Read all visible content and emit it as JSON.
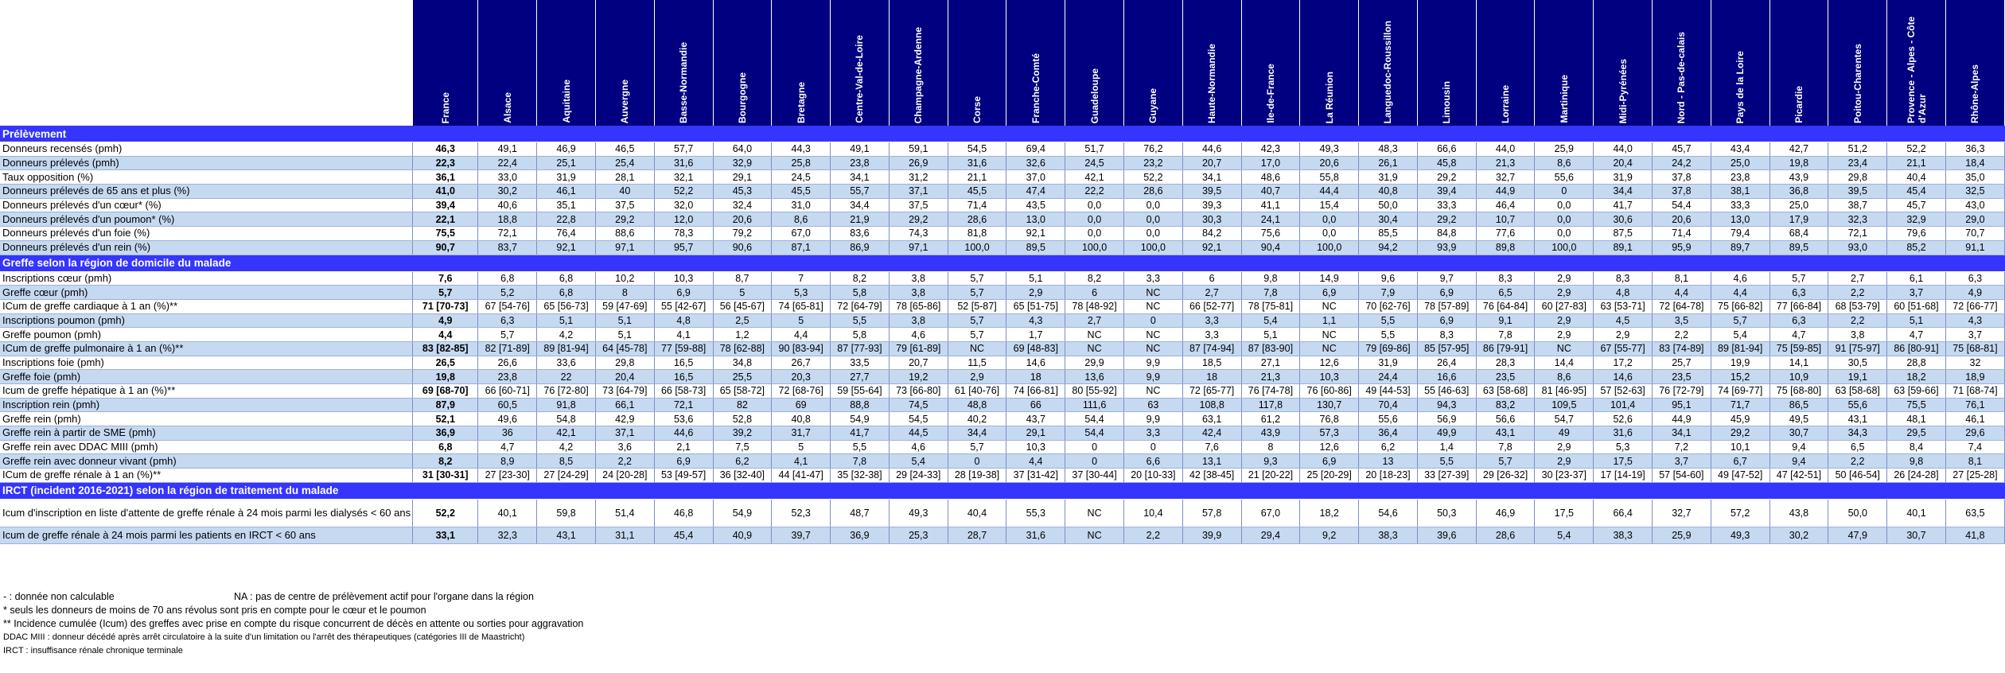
{
  "header": {
    "regions": [
      "France",
      "Alsace",
      "Aquitaine",
      "Auvergne",
      "Basse-Normandie",
      "Bourgogne",
      "Bretagne",
      "Centre-Val-de-Loire",
      "Champagne-Ardenne",
      "Corse",
      "Franche-Comté",
      "Guadeloupe",
      "Guyane",
      "Haute-Normandie",
      "Ile-de-France",
      "La Réunion",
      "Languedoc-Roussillon",
      "Limousin",
      "Lorraine",
      "Martinique",
      "Midi-Pyrénées",
      "Nord - Pas-de-calais",
      "Pays de la Loire",
      "Picardie",
      "Poitou-Charentes",
      "Provence - Alpes - Côte d'Azur",
      "Rhône-Alpes"
    ]
  },
  "sections": [
    {
      "title": "Prélèvement",
      "rows": [
        {
          "label": "Donneurs recensés (pmh)",
          "values": [
            "46,3",
            "49,1",
            "46,9",
            "46,5",
            "57,7",
            "64,0",
            "44,3",
            "49,1",
            "59,1",
            "54,5",
            "69,4",
            "51,7",
            "76,2",
            "44,6",
            "42,3",
            "49,3",
            "48,3",
            "66,6",
            "44,0",
            "25,9",
            "44,0",
            "45,7",
            "43,4",
            "42,7",
            "51,2",
            "52,2",
            "36,3"
          ]
        },
        {
          "label": "Donneurs prélevés (pmh)",
          "values": [
            "22,3",
            "22,4",
            "25,1",
            "25,4",
            "31,6",
            "32,9",
            "25,8",
            "23,8",
            "26,9",
            "31,6",
            "32,6",
            "24,5",
            "23,2",
            "20,7",
            "17,0",
            "20,6",
            "26,1",
            "45,8",
            "21,3",
            "8,6",
            "20,4",
            "24,2",
            "25,0",
            "19,8",
            "23,4",
            "21,1",
            "18,4"
          ]
        },
        {
          "label": "Taux opposition (%)",
          "values": [
            "36,1",
            "33,0",
            "31,9",
            "28,1",
            "32,1",
            "29,1",
            "24,5",
            "34,1",
            "31,2",
            "21,1",
            "37,0",
            "42,1",
            "52,2",
            "34,1",
            "48,6",
            "55,8",
            "31,9",
            "29,2",
            "32,7",
            "55,6",
            "31,9",
            "37,8",
            "23,8",
            "43,9",
            "29,8",
            "40,4",
            "35,0"
          ]
        },
        {
          "label": "Donneurs prélevés de 65 ans et plus (%)",
          "values": [
            "41,0",
            "30,2",
            "46,1",
            "40",
            "52,2",
            "45,3",
            "45,5",
            "55,7",
            "37,1",
            "45,5",
            "47,4",
            "22,2",
            "28,6",
            "39,5",
            "40,7",
            "44,4",
            "40,8",
            "39,4",
            "44,9",
            "0",
            "34,4",
            "37,8",
            "38,1",
            "36,8",
            "39,5",
            "45,4",
            "32,5"
          ]
        },
        {
          "label": "Donneurs prélevés d'un cœur* (%)",
          "values": [
            "39,4",
            "40,6",
            "35,1",
            "37,5",
            "32,0",
            "32,4",
            "31,0",
            "34,4",
            "37,5",
            "71,4",
            "43,5",
            "0,0",
            "0,0",
            "39,3",
            "41,1",
            "15,4",
            "50,0",
            "33,3",
            "46,4",
            "0,0",
            "41,7",
            "54,4",
            "33,3",
            "25,0",
            "38,7",
            "45,7",
            "43,0"
          ]
        },
        {
          "label": "Donneurs prélevés d'un poumon* (%)",
          "values": [
            "22,1",
            "18,8",
            "22,8",
            "29,2",
            "12,0",
            "20,6",
            "8,6",
            "21,9",
            "29,2",
            "28,6",
            "13,0",
            "0,0",
            "0,0",
            "30,3",
            "24,1",
            "0,0",
            "30,4",
            "29,2",
            "10,7",
            "0,0",
            "30,6",
            "20,6",
            "13,0",
            "17,9",
            "32,3",
            "32,9",
            "29,0"
          ]
        },
        {
          "label": "Donneurs prélevés d'un foie (%)",
          "values": [
            "75,5",
            "72,1",
            "76,4",
            "88,6",
            "78,3",
            "79,2",
            "67,0",
            "83,6",
            "74,3",
            "81,8",
            "92,1",
            "0,0",
            "0,0",
            "84,2",
            "75,6",
            "0,0",
            "85,5",
            "84,8",
            "77,6",
            "0,0",
            "87,5",
            "71,4",
            "79,4",
            "68,4",
            "72,1",
            "79,6",
            "70,7"
          ]
        },
        {
          "label": "Donneurs prélevés d'un rein (%)",
          "values": [
            "90,7",
            "83,7",
            "92,1",
            "97,1",
            "95,7",
            "90,6",
            "87,1",
            "86,9",
            "97,1",
            "100,0",
            "89,5",
            "100,0",
            "100,0",
            "92,1",
            "90,4",
            "100,0",
            "94,2",
            "93,9",
            "89,8",
            "100,0",
            "89,1",
            "95,9",
            "89,7",
            "89,5",
            "93,0",
            "85,2",
            "91,1"
          ]
        }
      ]
    },
    {
      "title": "Greffe selon la région de domicile du malade",
      "rows": [
        {
          "label": "Inscriptions cœur (pmh)",
          "values": [
            "7,6",
            "6,8",
            "6,8",
            "10,2",
            "10,3",
            "8,7",
            "7",
            "8,2",
            "3,8",
            "5,7",
            "5,1",
            "8,2",
            "3,3",
            "6",
            "9,8",
            "14,9",
            "9,6",
            "9,7",
            "8,3",
            "2,9",
            "8,3",
            "8,1",
            "4,6",
            "5,7",
            "2,7",
            "6,1",
            "6,3"
          ]
        },
        {
          "label": "Greffe cœur (pmh)",
          "values": [
            "5,7",
            "5,2",
            "6,8",
            "8",
            "6,9",
            "5",
            "5,3",
            "5,8",
            "3,8",
            "5,7",
            "2,9",
            "6",
            "NC",
            "2,7",
            "7,8",
            "6,9",
            "7,9",
            "6,9",
            "6,5",
            "2,9",
            "4,8",
            "4,4",
            "4,4",
            "6,3",
            "2,2",
            "3,7",
            "4,9"
          ]
        },
        {
          "label": "ICum de greffe cardiaque à 1 an (%)**",
          "values": [
            "71 [70-73]",
            "67 [54-76]",
            "65 [56-73]",
            "59 [47-69]",
            "55 [42-67]",
            "56 [45-67]",
            "74 [65-81]",
            "72 [64-79]",
            "78 [65-86]",
            "52 [5-87]",
            "65 [51-75]",
            "78 [48-92]",
            "NC",
            "66 [52-77]",
            "78 [75-81]",
            "NC",
            "70 [62-76]",
            "78 [57-89]",
            "76 [64-84]",
            "60 [27-83]",
            "63 [53-71]",
            "72 [64-78]",
            "75 [66-82]",
            "77 [66-84]",
            "68 [53-79]",
            "60 [51-68]",
            "72 [66-77]"
          ]
        },
        {
          "label": "Inscriptions poumon (pmh)",
          "values": [
            "4,9",
            "6,3",
            "5,1",
            "5,1",
            "4,8",
            "2,5",
            "5",
            "5,5",
            "3,8",
            "5,7",
            "4,3",
            "2,7",
            "0",
            "3,3",
            "5,4",
            "1,1",
            "5,5",
            "6,9",
            "9,1",
            "2,9",
            "4,5",
            "3,5",
            "5,7",
            "6,3",
            "2,2",
            "5,1",
            "4,3"
          ]
        },
        {
          "label": "Greffe poumon (pmh)",
          "values": [
            "4,4",
            "5,7",
            "4,2",
            "5,1",
            "4,1",
            "1,2",
            "4,4",
            "5,8",
            "4,6",
            "5,7",
            "1,7",
            "NC",
            "NC",
            "3,3",
            "5,1",
            "NC",
            "5,5",
            "8,3",
            "7,8",
            "2,9",
            "2,9",
            "2,2",
            "5,4",
            "4,7",
            "3,8",
            "4,7",
            "3,7"
          ]
        },
        {
          "label": "ICum de greffe pulmonaire à 1 an (%)**",
          "values": [
            "83 [82-85]",
            "82 [71-89]",
            "89 [81-94]",
            "64 [45-78]",
            "77 [59-88]",
            "78 [62-88]",
            "90 [83-94]",
            "87 [77-93]",
            "79 [61-89]",
            "NC",
            "69 [48-83]",
            "NC",
            "NC",
            "87 [74-94]",
            "87 [83-90]",
            "NC",
            "79 [69-86]",
            "85 [57-95]",
            "86 [79-91]",
            "NC",
            "67 [55-77]",
            "83 [74-89]",
            "89 [81-94]",
            "75 [59-85]",
            "91 [75-97]",
            "86 [80-91]",
            "75 [68-81]"
          ]
        },
        {
          "label": "Inscriptions foie (pmh)",
          "values": [
            "26,5",
            "26,6",
            "33,6",
            "29,8",
            "16,5",
            "34,8",
            "26,7",
            "33,5",
            "20,7",
            "11,5",
            "14,6",
            "29,9",
            "9,9",
            "18,5",
            "27,1",
            "12,6",
            "31,9",
            "26,4",
            "28,3",
            "14,4",
            "17,2",
            "25,7",
            "19,9",
            "14,1",
            "30,5",
            "28,8",
            "32"
          ]
        },
        {
          "label": "Greffe foie (pmh)",
          "values": [
            "19,8",
            "23,8",
            "22",
            "20,4",
            "16,5",
            "25,5",
            "20,3",
            "27,7",
            "19,2",
            "2,9",
            "18",
            "13,6",
            "9,9",
            "18",
            "21,3",
            "10,3",
            "24,4",
            "16,6",
            "23,5",
            "8,6",
            "14,6",
            "23,5",
            "15,2",
            "10,9",
            "19,1",
            "18,2",
            "18,9"
          ]
        },
        {
          "label": "Icum de greffe hépatique à 1 an (%)**",
          "values": [
            "69 [68-70]",
            "66 [60-71]",
            "76 [72-80]",
            "73 [64-79]",
            "66 [58-73]",
            "65 [58-72]",
            "72 [68-76]",
            "59 [55-64]",
            "73 [66-80]",
            "61 [40-76]",
            "74 [66-81]",
            "80 [55-92]",
            "NC",
            "72 [65-77]",
            "76 [74-78]",
            "76 [60-86]",
            "49 [44-53]",
            "55 [46-63]",
            "63 [58-68]",
            "81 [46-95]",
            "57 [52-63]",
            "76 [72-79]",
            "74 [69-77]",
            "75 [68-80]",
            "63 [58-68]",
            "63 [59-66]",
            "71 [68-74]"
          ]
        },
        {
          "label": "Inscription rein (pmh)",
          "values": [
            "87,9",
            "60,5",
            "91,8",
            "66,1",
            "72,1",
            "82",
            "69",
            "88,8",
            "74,5",
            "48,8",
            "66",
            "111,6",
            "63",
            "108,8",
            "117,8",
            "130,7",
            "70,4",
            "94,3",
            "83,2",
            "109,5",
            "101,4",
            "95,1",
            "71,7",
            "86,5",
            "55,6",
            "75,5",
            "76,1"
          ]
        },
        {
          "label": "Greffe rein (pmh)",
          "values": [
            "52,1",
            "49,6",
            "54,8",
            "42,9",
            "53,6",
            "52,8",
            "40,8",
            "54,9",
            "54,5",
            "40,2",
            "43,7",
            "54,4",
            "9,9",
            "63,1",
            "61,2",
            "76,8",
            "55,6",
            "56,9",
            "56,6",
            "54,7",
            "52,6",
            "44,9",
            "45,9",
            "49,5",
            "43,1",
            "48,1",
            "46,1"
          ]
        },
        {
          "label": "Greffe rein à partir de SME (pmh)",
          "values": [
            "36,9",
            "36",
            "42,1",
            "37,1",
            "44,6",
            "39,2",
            "31,7",
            "41,7",
            "44,5",
            "34,4",
            "29,1",
            "54,4",
            "3,3",
            "42,4",
            "43,9",
            "57,3",
            "36,4",
            "49,9",
            "43,1",
            "49",
            "31,6",
            "34,1",
            "29,2",
            "30,7",
            "34,3",
            "29,5",
            "29,6"
          ]
        },
        {
          "label": "Greffe rein avec DDAC MIII (pmh)",
          "values": [
            "6,8",
            "4,7",
            "4,2",
            "3,6",
            "2,1",
            "7,5",
            "5",
            "5,5",
            "4,6",
            "5,7",
            "10,3",
            "0",
            "0",
            "7,6",
            "8",
            "12,6",
            "6,2",
            "1,4",
            "7,8",
            "2,9",
            "5,3",
            "7,2",
            "10,1",
            "9,4",
            "6,5",
            "8,4",
            "7,4"
          ]
        },
        {
          "label": "Greffe rein avec donneur vivant (pmh)",
          "values": [
            "8,2",
            "8,9",
            "8,5",
            "2,2",
            "6,9",
            "6,2",
            "4,1",
            "7,8",
            "5,4",
            "0",
            "4,4",
            "0",
            "6,6",
            "13,1",
            "9,3",
            "6,9",
            "13",
            "5,5",
            "5,7",
            "2,9",
            "17,5",
            "3,7",
            "6,7",
            "9,4",
            "2,2",
            "9,8",
            "8,1"
          ]
        },
        {
          "label": "ICum de greffe rénale à 1 an (%)**",
          "values": [
            "31 [30-31]",
            "27 [23-30]",
            "27 [24-29]",
            "24 [20-28]",
            "53 [49-57]",
            "36 [32-40]",
            "44 [41-47]",
            "35 [32-38]",
            "29 [24-33]",
            "28 [19-38]",
            "37 [31-42]",
            "37 [30-44]",
            "20 [10-33]",
            "42 [38-45]",
            "21 [20-22]",
            "25 [20-29]",
            "20 [18-23]",
            "33 [27-39]",
            "29 [26-32]",
            "30 [23-37]",
            "17 [14-19]",
            "57 [54-60]",
            "49 [47-52]",
            "47 [42-51]",
            "50 [46-54]",
            "26 [24-28]",
            "27 [25-28]"
          ]
        }
      ]
    },
    {
      "title": "IRCT (incident 2016-2021) selon la région de traitement du malade",
      "rows": [
        {
          "label": "Icum d'inscription en liste d'attente de greffe rénale à 24 mois parmi les dialysés < 60 ans",
          "values": [
            "52,2",
            "40,1",
            "59,8",
            "51,4",
            "46,8",
            "54,9",
            "52,3",
            "48,7",
            "49,3",
            "40,4",
            "55,3",
            "NC",
            "10,4",
            "57,8",
            "67,0",
            "18,2",
            "54,6",
            "50,3",
            "46,9",
            "17,5",
            "66,4",
            "32,7",
            "57,2",
            "43,8",
            "50,0",
            "40,1",
            "63,5"
          ]
        },
        {
          "label": "Icum de greffe rénale à 24 mois parmi les patients en IRCT < 60 ans",
          "values": [
            "33,1",
            "32,3",
            "43,1",
            "31,1",
            "45,4",
            "40,9",
            "39,7",
            "36,9",
            "25,3",
            "28,7",
            "31,6",
            "NC",
            "2,2",
            "39,9",
            "29,4",
            "9,2",
            "38,3",
            "39,6",
            "28,6",
            "5,4",
            "38,3",
            "25,9",
            "49,3",
            "30,2",
            "47,9",
            "30,7",
            "41,8"
          ]
        }
      ]
    }
  ],
  "notes": {
    "dash": "- : donnée non calculable",
    "na": "NA : pas de centre de prélèvement actif pour l'organe dans la région",
    "star1": "* seuls les donneurs de moins de 70 ans révolus sont pris en compte pour  le cœur et le poumon",
    "star2": "** Incidence cumulée (Icum) des greffes avec prise en compte du risque concurrent de décès en attente ou sorties pour aggravation",
    "ddac": "DDAC MIII : donneur décédé après arrêt circulatoire à la suite d'un limitation ou l'arrêt des thérapeutiques (catégories III de Maastricht)",
    "irct": "IRCT : insuffisance rénale chronique terminale"
  }
}
